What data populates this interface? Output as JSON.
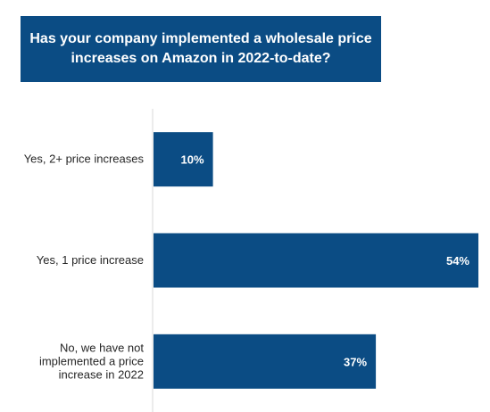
{
  "chart_data": {
    "type": "bar",
    "orientation": "horizontal",
    "title": "Has your company implemented a wholesale price increases on Amazon in 2022-to-date?",
    "categories": [
      [
        "Yes, 2+ price increases"
      ],
      [
        "Yes, 1 price increase"
      ],
      [
        "No, we have not",
        "implemented a price",
        "increase in 2022"
      ]
    ],
    "values": [
      10,
      54,
      37
    ],
    "value_labels": [
      "10%",
      "54%",
      "37%"
    ],
    "xlim": [
      0,
      54
    ],
    "grid": false,
    "legend": "none",
    "colors": {
      "bar": "#0b4c84",
      "title_bg": "#0b4c84",
      "axis": "#d9d9d9"
    }
  }
}
